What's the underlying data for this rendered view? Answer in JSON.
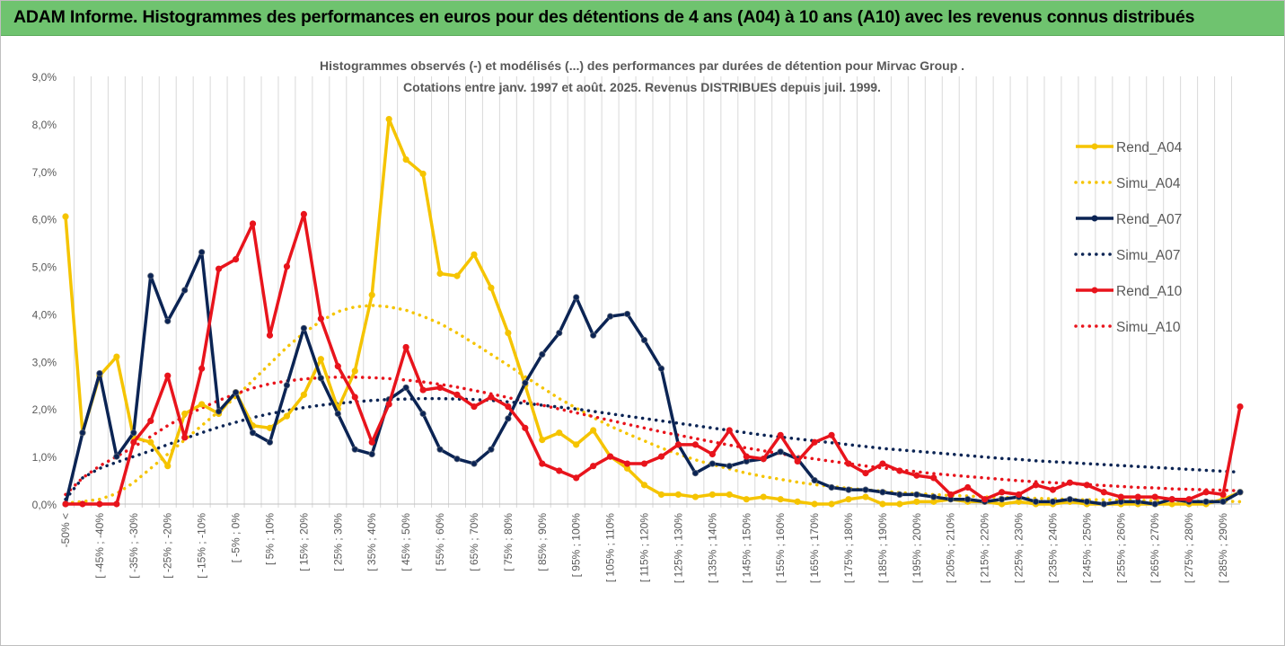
{
  "banner": {
    "title": "ADAM Informe. Histogrammes des performances en euros pour des détentions de 4 ans (A04) à 10 ans (A10) avec les revenus connus distribués"
  },
  "colors": {
    "banner_bg": "#6fc36f",
    "A04": "#f5c400",
    "A07": "#0b2454",
    "A10": "#e8141c",
    "grid": "#d9d9d9",
    "text": "#595959"
  },
  "chart_data": {
    "type": "line",
    "title": [
      "Histogrammes observés (-) et modélisés (...) des performances par durées de détention pour Mirvac Group .",
      "Cotations entre janv. 1997 et août. 2025. Revenus DISTRIBUES depuis juil. 1999."
    ],
    "ylim": [
      0,
      9
    ],
    "yticks": [
      "0,0%",
      "1,0%",
      "2,0%",
      "3,0%",
      "4,0%",
      "5,0%",
      "6,0%",
      "7,0%",
      "8,0%",
      "9,0%"
    ],
    "grid": "vertical gridlines",
    "legend_position": "right",
    "xtick_labels": [
      "-50% <",
      "[ -45% ; -40%",
      "[ -35% ; -30%",
      "[ -25% ; -20%",
      "[ -15% ; -10%",
      "[ -5% ; 0%",
      "[ 5% ; 10%",
      "[ 15% ; 20%",
      "[ 25% ; 30%",
      "[ 35% ; 40%",
      "[ 45% ; 50%",
      "[ 55% ; 60%",
      "[ 65% ; 70%",
      "[ 75% ; 80%",
      "[ 85% ; 90%",
      "[ 95% ; 100%",
      "[ 105% ; 110%",
      "[ 115% ; 120%",
      "[ 125% ; 130%",
      "[ 135% ; 140%",
      "[ 145% ; 150%",
      "[ 155% ; 160%",
      "[ 165% ; 170%",
      "[ 175% ; 180%",
      "[ 185% ; 190%",
      "[ 195% ; 200%",
      "[ 205% ; 210%",
      "[ 215% ; 220%",
      "[ 225% ; 230%",
      "[ 235% ; 240%",
      "[ 245% ; 250%",
      "[ 255% ; 260%",
      "[ 265% ; 270%",
      "[ 275% ; 280%",
      "[ 285% ; 290%"
    ],
    "xtick_every": 2,
    "n_points": 70,
    "series": [
      {
        "name": "Rend_A04",
        "style": "solid-marker",
        "color": "#f5c400",
        "values": [
          6.05,
          1.5,
          2.7,
          3.1,
          1.4,
          1.3,
          0.8,
          1.9,
          2.1,
          1.9,
          2.35,
          1.65,
          1.6,
          1.85,
          2.3,
          3.05,
          2.0,
          2.8,
          4.4,
          8.1,
          7.25,
          6.95,
          4.85,
          4.8,
          5.25,
          4.55,
          3.6,
          2.5,
          1.35,
          1.5,
          1.25,
          1.55,
          1.0,
          0.75,
          0.4,
          0.2,
          0.2,
          0.15,
          0.2,
          0.2,
          0.1,
          0.15,
          0.1,
          0.05,
          0.0,
          0.0,
          0.1,
          0.15,
          0.0,
          0.0,
          0.05,
          0.05,
          0.1,
          0.05,
          0.05,
          0.0,
          0.05,
          0.0,
          0.0,
          0.05,
          0.0,
          0.0,
          0.0,
          0.0,
          0.0,
          0.0,
          0.0,
          0.0,
          0.1,
          0.25
        ]
      },
      {
        "name": "Simu_A04",
        "style": "dotted",
        "color": "#f5c400",
        "values": [
          0.02,
          0.05,
          0.1,
          0.22,
          0.45,
          0.75,
          1.05,
          1.35,
          1.65,
          1.95,
          2.25,
          2.6,
          2.95,
          3.3,
          3.6,
          3.85,
          4.05,
          4.15,
          4.18,
          4.15,
          4.08,
          3.95,
          3.8,
          3.6,
          3.38,
          3.15,
          2.92,
          2.68,
          2.45,
          2.22,
          2.02,
          1.82,
          1.64,
          1.48,
          1.33,
          1.18,
          1.05,
          0.93,
          0.83,
          0.74,
          0.65,
          0.58,
          0.52,
          0.46,
          0.41,
          0.37,
          0.33,
          0.3,
          0.27,
          0.24,
          0.22,
          0.2,
          0.18,
          0.17,
          0.15,
          0.14,
          0.13,
          0.12,
          0.11,
          0.1,
          0.09,
          0.09,
          0.08,
          0.08,
          0.07,
          0.07,
          0.06,
          0.06,
          0.06,
          0.05
        ]
      },
      {
        "name": "Rend_A07",
        "style": "solid-marker",
        "color": "#0b2454",
        "values": [
          0.0,
          1.5,
          2.75,
          1.0,
          1.5,
          4.8,
          3.85,
          4.5,
          5.3,
          1.95,
          2.35,
          1.5,
          1.3,
          2.5,
          3.7,
          2.65,
          1.9,
          1.15,
          1.05,
          2.2,
          2.45,
          1.9,
          1.15,
          0.95,
          0.85,
          1.15,
          1.8,
          2.55,
          3.15,
          3.6,
          4.35,
          3.55,
          3.95,
          4.0,
          3.45,
          2.85,
          1.25,
          0.65,
          0.85,
          0.8,
          0.9,
          0.95,
          1.1,
          0.95,
          0.5,
          0.35,
          0.3,
          0.3,
          0.25,
          0.2,
          0.2,
          0.15,
          0.1,
          0.1,
          0.05,
          0.1,
          0.15,
          0.05,
          0.05,
          0.1,
          0.05,
          0.0,
          0.05,
          0.05,
          0.0,
          0.1,
          0.05,
          0.05,
          0.05,
          0.25
        ]
      },
      {
        "name": "Simu_A07",
        "style": "dotted",
        "color": "#0b2454",
        "values": [
          0.1,
          0.55,
          0.75,
          0.88,
          1.0,
          1.12,
          1.25,
          1.38,
          1.5,
          1.62,
          1.72,
          1.82,
          1.9,
          1.97,
          2.03,
          2.08,
          2.12,
          2.15,
          2.18,
          2.2,
          2.21,
          2.22,
          2.22,
          2.21,
          2.2,
          2.18,
          2.15,
          2.12,
          2.08,
          2.04,
          2.0,
          1.95,
          1.9,
          1.85,
          1.8,
          1.75,
          1.7,
          1.65,
          1.6,
          1.55,
          1.5,
          1.45,
          1.41,
          1.37,
          1.33,
          1.29,
          1.25,
          1.21,
          1.17,
          1.14,
          1.11,
          1.08,
          1.05,
          1.02,
          0.99,
          0.96,
          0.94,
          0.91,
          0.89,
          0.87,
          0.85,
          0.83,
          0.81,
          0.79,
          0.77,
          0.75,
          0.73,
          0.71,
          0.69,
          0.67
        ]
      },
      {
        "name": "Rend_A10",
        "style": "solid-marker",
        "color": "#e8141c",
        "values": [
          0.0,
          0.0,
          0.0,
          0.0,
          1.3,
          1.75,
          2.7,
          1.4,
          2.85,
          4.95,
          5.15,
          5.9,
          3.55,
          5.0,
          6.1,
          3.9,
          2.9,
          2.25,
          1.3,
          2.1,
          3.3,
          2.4,
          2.45,
          2.3,
          2.05,
          2.25,
          2.05,
          1.6,
          0.85,
          0.7,
          0.55,
          0.8,
          1.0,
          0.85,
          0.85,
          1.0,
          1.25,
          1.25,
          1.05,
          1.55,
          1.0,
          0.95,
          1.45,
          0.9,
          1.3,
          1.45,
          0.85,
          0.65,
          0.85,
          0.7,
          0.6,
          0.55,
          0.2,
          0.35,
          0.1,
          0.25,
          0.2,
          0.4,
          0.3,
          0.45,
          0.4,
          0.25,
          0.15,
          0.15,
          0.15,
          0.1,
          0.1,
          0.25,
          0.2,
          2.05
        ]
      },
      {
        "name": "Simu_A10",
        "style": "dotted",
        "color": "#e8141c",
        "values": [
          0.2,
          0.55,
          0.8,
          1.0,
          1.2,
          1.42,
          1.65,
          1.85,
          2.02,
          2.18,
          2.32,
          2.44,
          2.53,
          2.59,
          2.63,
          2.66,
          2.67,
          2.67,
          2.66,
          2.64,
          2.61,
          2.57,
          2.52,
          2.46,
          2.39,
          2.32,
          2.24,
          2.16,
          2.08,
          2.0,
          1.92,
          1.84,
          1.76,
          1.68,
          1.6,
          1.52,
          1.45,
          1.38,
          1.31,
          1.24,
          1.18,
          1.12,
          1.06,
          1.0,
          0.95,
          0.9,
          0.85,
          0.8,
          0.76,
          0.72,
          0.68,
          0.64,
          0.61,
          0.58,
          0.55,
          0.52,
          0.49,
          0.47,
          0.45,
          0.43,
          0.41,
          0.39,
          0.37,
          0.35,
          0.34,
          0.32,
          0.31,
          0.3,
          0.29,
          0.28
        ]
      }
    ]
  }
}
